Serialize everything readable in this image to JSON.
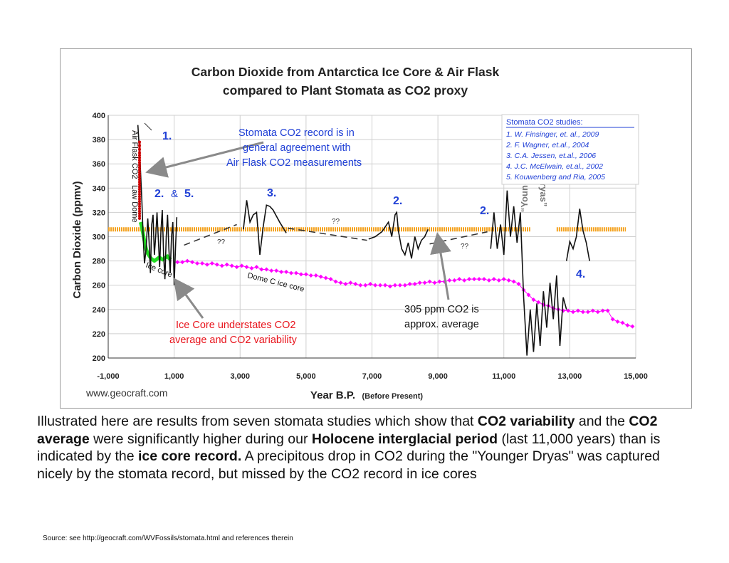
{
  "chart_data": {
    "type": "line",
    "title_line1": "Carbon Dioxide from Antarctica Ice Core & Air Flask",
    "title_line2": "compared to Plant Stomata as CO2 proxy",
    "xlabel": "Year B.P.",
    "xlabel_suffix": "(Before Present)",
    "ylabel": "Carbon Dioxide (ppmv)",
    "xlim": [
      -1000,
      15000
    ],
    "ylim": [
      200,
      400
    ],
    "x_ticks": [
      -1000,
      1000,
      3000,
      5000,
      7000,
      9000,
      11000,
      13000,
      15000
    ],
    "x_tick_labels": [
      "-1,000",
      "1,000",
      "3,000",
      "5,000",
      "7,000",
      "9,000",
      "11,000",
      "13,000",
      "15,000"
    ],
    "y_ticks": [
      200,
      220,
      240,
      260,
      280,
      300,
      320,
      340,
      360,
      380,
      400
    ],
    "grid": true,
    "watermark": "www.geocraft.com",
    "legend": {
      "title": "Stomata CO2 studies:",
      "position": "top-right",
      "items": [
        "1.  W. Finsinger, et. al., 2009",
        "2.  F. Wagner, et.al., 2004",
        "3.  C.A. Jessen, et.al., 2006",
        "4.  J.C. McElwain, et.al., 2002",
        "5.  Kouwenberg and Ria, 2005"
      ]
    },
    "series": [
      {
        "name": "Air Flask CO2",
        "color": "#cc0000",
        "x": [
          -50,
          -50,
          -50,
          -50,
          -50,
          -50,
          -50,
          -50,
          -50,
          -50,
          -50,
          -50,
          -50,
          -50,
          -50,
          -50,
          -50,
          -50,
          -50,
          -50,
          -50,
          -50,
          -50,
          -50,
          -50,
          -50,
          -50,
          -50,
          -50,
          -50,
          -50
        ],
        "y": [
          315,
          317,
          319,
          321,
          323,
          325,
          327,
          329,
          331,
          333,
          335,
          337,
          339,
          341,
          343,
          345,
          347,
          349,
          351,
          353,
          355,
          357,
          359,
          361,
          363,
          365,
          367,
          369,
          372,
          375,
          378
        ]
      },
      {
        "name": "Law Dome",
        "color": "#22dd22",
        "x": [
          -20,
          20,
          60,
          100,
          150,
          200,
          250,
          300,
          350,
          400,
          450,
          500,
          550,
          600,
          650,
          700,
          750,
          800,
          850,
          900
        ],
        "y": [
          312,
          308,
          302,
          296,
          290,
          286,
          284,
          282,
          281,
          280,
          281,
          282,
          283,
          282,
          281,
          282,
          283,
          284,
          282,
          281
        ]
      },
      {
        "name": "Dome C ice core",
        "color": "#ff00ff",
        "x": [
          1100,
          1250,
          1400,
          1550,
          1700,
          1850,
          2000,
          2150,
          2300,
          2450,
          2600,
          2750,
          2900,
          3050,
          3200,
          3350,
          3500,
          3650,
          3800,
          3950,
          4100,
          4250,
          4400,
          4550,
          4700,
          4850,
          5000,
          5150,
          5300,
          5450,
          5600,
          5750,
          5900,
          6050,
          6200,
          6350,
          6500,
          6650,
          6800,
          6950,
          7100,
          7250,
          7400,
          7550,
          7700,
          7850,
          8000,
          8150,
          8300,
          8450,
          8600,
          8750,
          8900,
          9050,
          9200,
          9350,
          9500,
          9650,
          9800,
          9950,
          10100,
          10250,
          10400,
          10550,
          10700,
          10850,
          11000,
          11150,
          11300,
          11450,
          11600,
          11750,
          11900,
          12050,
          12200,
          12350,
          12500,
          12650,
          12800,
          12950,
          13100,
          13250,
          13400,
          13550,
          13700,
          13850,
          14000,
          14150,
          14300,
          14450,
          14600,
          14750,
          14900
        ],
        "y": [
          279,
          279,
          280,
          279,
          278,
          278,
          277,
          278,
          277,
          276,
          277,
          276,
          275,
          276,
          275,
          274,
          275,
          273,
          273,
          272,
          272,
          271,
          271,
          270,
          270,
          269,
          269,
          268,
          268,
          267,
          266,
          265,
          263,
          262,
          261,
          262,
          261,
          260,
          260,
          261,
          260,
          260,
          260,
          259,
          260,
          260,
          260,
          261,
          261,
          262,
          262,
          263,
          262,
          263,
          263,
          264,
          264,
          265,
          264,
          265,
          265,
          265,
          265,
          264,
          265,
          264,
          265,
          264,
          263,
          261,
          256,
          252,
          248,
          246,
          244,
          243,
          241,
          240,
          239,
          239,
          238,
          239,
          238,
          238,
          239,
          238,
          239,
          239,
          232,
          230,
          229,
          227,
          226
        ]
      },
      {
        "name": "Stomata CO2",
        "color": "#111111",
        "segments": [
          {
            "x": [
              -100,
              -30,
              20,
              60,
              100,
              150,
              200,
              240,
              280,
              320,
              360,
              400,
              440,
              480,
              520,
              560,
              600,
              640,
              680,
              720,
              760,
              800,
              840,
              880,
              920,
              960,
              1000,
              1040,
              1080
            ],
            "y": [
              392,
              360,
              330,
              300,
              278,
              290,
              315,
              296,
              270,
              310,
              318,
              285,
              300,
              320,
              298,
              275,
              305,
              322,
              285,
              265,
              300,
              318,
              290,
              270,
              300,
              312,
              260,
              290,
              316
            ]
          },
          {
            "x": [
              3100,
              3200,
              3300,
              3400,
              3500,
              3600,
              3700,
              3800,
              3900,
              4000,
              4200,
              4400
            ],
            "y": [
              306,
              330,
              312,
              318,
              320,
              285,
              308,
              326,
              325,
              322,
              312,
              303
            ]
          },
          {
            "x": [
              6900,
              7100,
              7300,
              7500,
              7600,
              7700,
              7750,
              7800,
              7900,
              8000,
              8100,
              8200,
              8300,
              8400,
              8500,
              8600,
              8700
            ],
            "y": [
              298,
              300,
              304,
              312,
              300,
              318,
              320,
              305,
              290,
              285,
              295,
              282,
              300,
              290,
              297,
              300,
              306
            ]
          },
          {
            "x": [
              10600,
              10700,
              10800,
              10900,
              11000,
              11100,
              11200,
              11300,
              11400,
              11500,
              11600,
              11700,
              11800,
              11900,
              12000,
              12100,
              12200,
              12300,
              12400,
              12500,
              12600,
              12700,
              12800,
              12900
            ],
            "y": [
              290,
              320,
              290,
              310,
              285,
              338,
              300,
              325,
              295,
              320,
              250,
              202,
              240,
              205,
              245,
              210,
              255,
              225,
              262,
              232,
              268,
              210,
              250,
              240
            ]
          },
          {
            "x": [
              12900,
              13000,
              13100,
              13200,
              13300,
              13400,
              13500,
              13600
            ],
            "y": [
              280,
              296,
              290,
              300,
              323,
              305,
              295,
              280
            ]
          }
        ]
      },
      {
        "name": "Average",
        "color": "#f4a21f",
        "x": [
          -1000,
          11800,
          12600,
          14700
        ],
        "y": [
          306,
          306,
          306,
          306
        ]
      }
    ],
    "annotations": {
      "label_air_flask": "Air Flask CO2",
      "label_law_dome": "Law Dome",
      "label_ice_core": "Ice core",
      "label_dome_c": "Dome C ice core",
      "label_stomata_agreement": [
        "Stomata CO2 record is in",
        "general agreement with",
        "Air Flask CO2 measurements"
      ],
      "label_understates": [
        "Ice Core understates CO2",
        "average and CO2 variability"
      ],
      "label_average": [
        "305 ppm CO2 is",
        "approx. average"
      ],
      "label_younger_dryas": [
        "“Younger",
        "Dryas”"
      ],
      "num_1": "1.",
      "num_2_and": "2.",
      "amp": "&",
      "num_5": "5.",
      "num_3": "3.",
      "num_2a": "2.",
      "num_2b": "2.",
      "num_4": "4.",
      "q1": "??",
      "q2": "??",
      "q3": "??"
    }
  },
  "caption": {
    "p1": "Illustrated here are results from seven stomata studies which show that ",
    "b1": "CO2 variability",
    "p2": " and the ",
    "b2": "CO2 average",
    "p3": " were significantly higher during our ",
    "b3": "Holocene interglacial period",
    "p4": " (last 11,000 years) than is indicated by the ",
    "b4": "ice core record.",
    "p5": " A precipitous drop in CO2 during the \"Younger Dryas\" was captured nicely by the stomata record, but missed by the CO2 record in ice cores"
  },
  "source": "Source:  see http://geocraft.com/WVFossils/stomata.html  and references therein",
  "colors": {
    "blue_text": "#1f3fd6",
    "red_text": "#e8141c",
    "arrow": "#8a8a8a",
    "grid": "#cfcfcf"
  }
}
